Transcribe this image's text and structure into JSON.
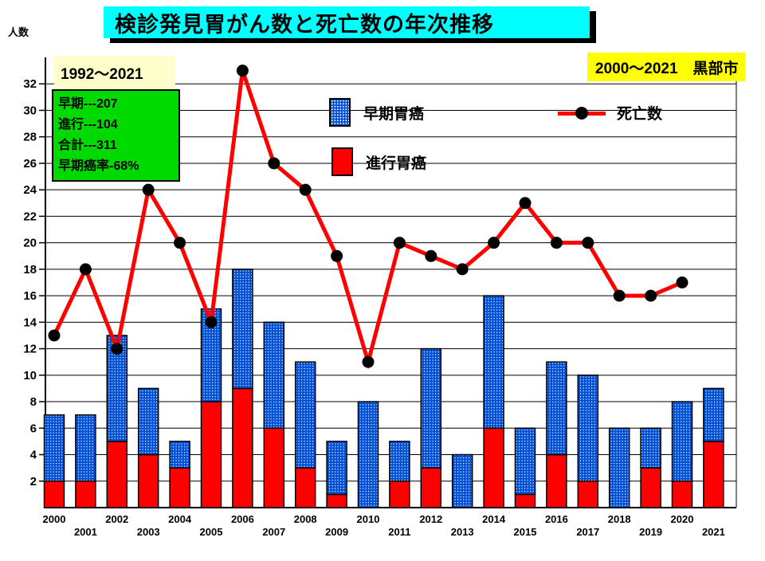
{
  "title": "検診発見胃がん数と死亡数の年次推移",
  "y_axis_unit": "人数",
  "period_box": "1992～2021",
  "stats_box": {
    "lines": [
      "早期---207",
      "進行---104",
      "合計---311",
      "早期癌率-68%"
    ]
  },
  "region_box": "2000～2021　黒部市",
  "legend": {
    "early": "早期胃癌",
    "advanced": "進行胃癌",
    "deaths": "死亡数"
  },
  "colors": {
    "title_bg": "#00ffff",
    "period_bg": "#ffffcc",
    "stats_bg": "#00da00",
    "region_bg": "#ffff00",
    "bar_advanced": "#ff0000",
    "bar_early": "#0050d8",
    "line_deaths": "#ff0000",
    "marker": "#000000",
    "grid": "#000000"
  },
  "chart_data": {
    "type": "bar",
    "subtype": "stacked-bars-with-line",
    "title": "検診発見胃がん数と死亡数の年次推移",
    "ylabel": "人数",
    "categories": [
      2000,
      2001,
      2002,
      2003,
      2004,
      2005,
      2006,
      2007,
      2008,
      2009,
      2010,
      2011,
      2012,
      2013,
      2014,
      2015,
      2016,
      2017,
      2018,
      2019,
      2020,
      2021
    ],
    "series": [
      {
        "name": "進行胃癌",
        "type": "bar",
        "stack": "cancer",
        "color": "#ff0000",
        "values": [
          2,
          2,
          5,
          4,
          3,
          8,
          9,
          6,
          3,
          1,
          0,
          2,
          3,
          0,
          6,
          1,
          4,
          2,
          0,
          3,
          2,
          5
        ]
      },
      {
        "name": "早期胃癌",
        "type": "bar",
        "stack": "cancer",
        "color": "#0050d8",
        "pattern": "white-dot-grid",
        "values": [
          5,
          5,
          8,
          5,
          2,
          7,
          9,
          8,
          8,
          4,
          8,
          3,
          9,
          4,
          10,
          5,
          7,
          8,
          6,
          3,
          6,
          4
        ]
      },
      {
        "name": "死亡数",
        "type": "line",
        "color": "#ff0000",
        "marker": "black-circle",
        "values": [
          13,
          18,
          12,
          24,
          20,
          14,
          33,
          26,
          24,
          19,
          11,
          20,
          19,
          18,
          20,
          23,
          20,
          20,
          16,
          16,
          17,
          null
        ]
      }
    ],
    "ylim": [
      0,
      34
    ],
    "yticks": {
      "start": 2,
      "end": 32,
      "step": 2
    },
    "grid": true,
    "legend_position": "top-inside"
  }
}
